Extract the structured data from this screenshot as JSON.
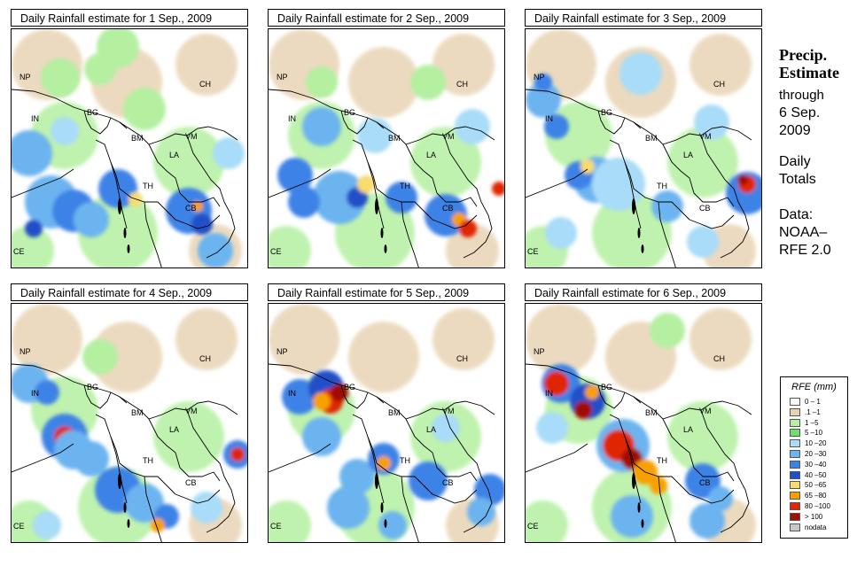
{
  "panels": [
    {
      "title": "Daily Rainfall estimate for  1 Sep., 2009",
      "day": 1
    },
    {
      "title": "Daily Rainfall estimate for  2 Sep., 2009",
      "day": 2
    },
    {
      "title": "Daily Rainfall estimate for  3 Sep., 2009",
      "day": 3
    },
    {
      "title": "Daily Rainfall estimate for  4 Sep., 2009",
      "day": 4
    },
    {
      "title": "Daily Rainfall estimate for  5 Sep., 2009",
      "day": 5
    },
    {
      "title": "Daily Rainfall estimate for  6 Sep., 2009",
      "day": 6
    }
  ],
  "country_labels": [
    "NP",
    "CH",
    "IN",
    "BG",
    "BM",
    "VM",
    "LA",
    "TH",
    "CB",
    "CE"
  ],
  "side": {
    "title_line1": "Precip.",
    "title_line2": "Estimate",
    "through": "through",
    "date_line1": "6 Sep.",
    "date_line2": "2009",
    "daily_line1": "Daily",
    "daily_line2": "Totals",
    "data_line1": "Data:",
    "data_line2": "NOAA–",
    "data_line3": "RFE 2.0"
  },
  "legend": {
    "title": "RFE (mm)",
    "items": [
      {
        "label": "0 – 1",
        "color": "#ffffff"
      },
      {
        "label": ".1 –1",
        "color": "#e8d4b4"
      },
      {
        "label": "1 –5",
        "color": "#b4f0a0"
      },
      {
        "label": "5 –10",
        "color": "#6ee06e"
      },
      {
        "label": "10 –20",
        "color": "#a8dcf8"
      },
      {
        "label": "20 –30",
        "color": "#6cb4f0"
      },
      {
        "label": "30 –40",
        "color": "#3c82e6"
      },
      {
        "label": "40 –50",
        "color": "#2050c8"
      },
      {
        "label": "50 –65",
        "color": "#f8dc6c"
      },
      {
        "label": "65 –80",
        "color": "#f8a000"
      },
      {
        "label": "80 –100",
        "color": "#e02800"
      },
      {
        "label": "> 100",
        "color": "#a01000"
      },
      {
        "label": "nodata",
        "color": "#c8c8c8"
      }
    ]
  }
}
